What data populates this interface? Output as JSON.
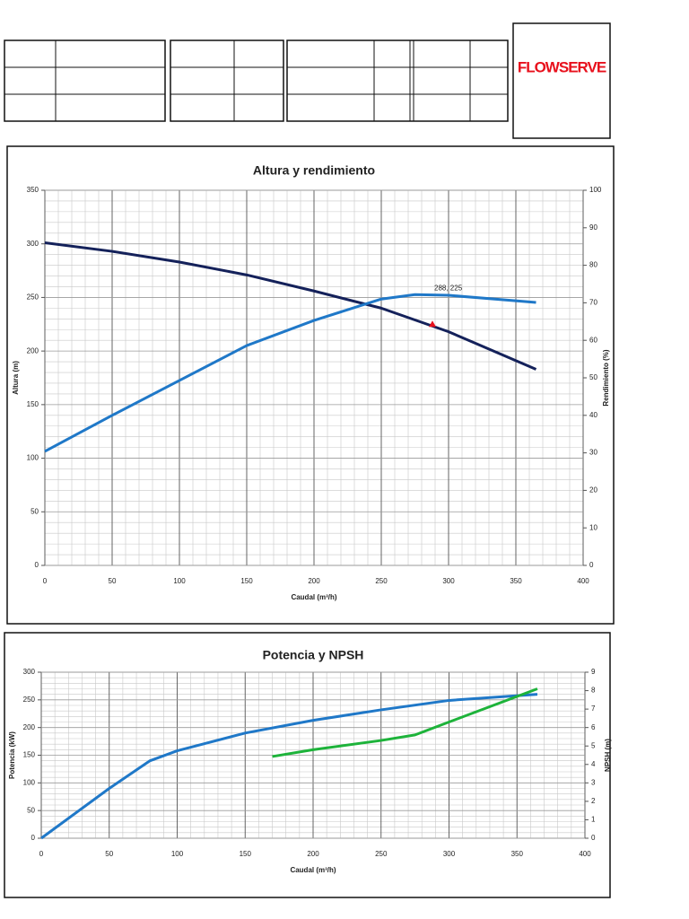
{
  "logo": "FLOWSERVE",
  "chart_data": [
    {
      "type": "line",
      "title": "Altura y rendimiento",
      "x_label": "Caudal (m³/h)",
      "y_label": "Altura (m)",
      "y2_label": "Rendimiento (%)",
      "xlim": [
        0,
        400
      ],
      "xticks": [
        0,
        50,
        100,
        150,
        200,
        250,
        300,
        350,
        400
      ],
      "ylim": [
        0,
        350
      ],
      "yticks": [
        0,
        50,
        100,
        150,
        200,
        250,
        300,
        350
      ],
      "y2lim": [
        0,
        100
      ],
      "y2ticks": [
        0,
        10,
        20,
        30,
        40,
        50,
        60,
        70,
        80,
        90,
        100
      ],
      "grid": true,
      "minor_grid": true,
      "series": [
        {
          "color": "#14215a",
          "x": [
            0,
            50,
            100,
            150,
            200,
            250,
            300,
            365
          ],
          "values": [
            301,
            293,
            283,
            271,
            256,
            240,
            218,
            183
          ]
        },
        {
          "color": "#1f78c8",
          "axis": "y2",
          "x": [
            0,
            50,
            100,
            150,
            200,
            250,
            275,
            300,
            365
          ],
          "values": [
            30.4,
            40,
            49.3,
            58.6,
            65.3,
            71,
            72.2,
            72,
            70.1
          ]
        }
      ],
      "annotations": [
        {
          "text": "288, 225",
          "x": 288,
          "y": 225,
          "color": "#e8101c"
        }
      ]
    },
    {
      "type": "line",
      "title": "Potencia y NPSH",
      "x_label": "Caudal (m³/h)",
      "y_label": "Potencia (kW)",
      "y2_label": "NPSH (m)",
      "xlim": [
        0,
        400
      ],
      "xticks": [
        0,
        50,
        100,
        150,
        200,
        250,
        300,
        350,
        400
      ],
      "ylim": [
        0,
        300
      ],
      "yticks": [
        0,
        50,
        100,
        150,
        200,
        250,
        300
      ],
      "y2lim": [
        0,
        9
      ],
      "y2ticks": [
        0,
        1,
        2,
        3,
        4,
        5,
        6,
        7,
        8,
        9
      ],
      "grid": true,
      "minor_grid": true,
      "series": [
        {
          "color": "#1f78c8",
          "x": [
            0,
            50,
            80,
            100,
            150,
            200,
            250,
            300,
            365
          ],
          "values": [
            0,
            90,
            140,
            158,
            190,
            213,
            232,
            249,
            260
          ]
        },
        {
          "color": "#1db33a",
          "axis": "y2",
          "x": [
            170,
            200,
            250,
            275,
            300,
            365
          ],
          "values": [
            4.43,
            4.8,
            5.3,
            5.6,
            6.3,
            8.1
          ]
        }
      ]
    }
  ]
}
